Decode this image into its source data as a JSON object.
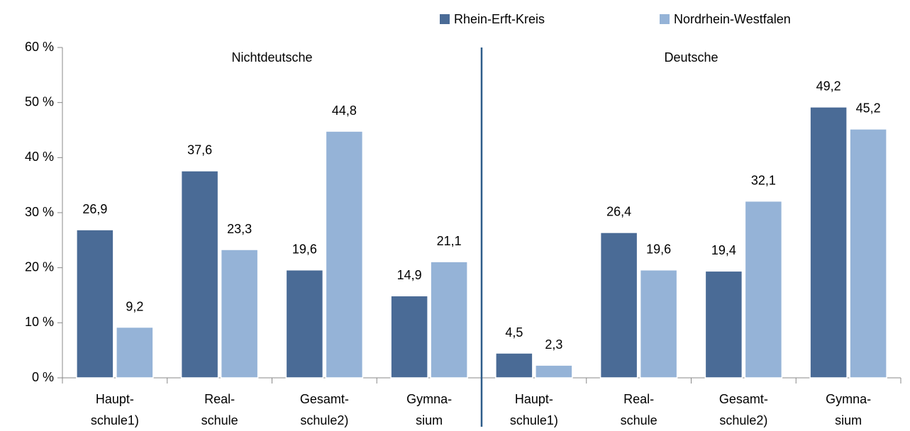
{
  "chart_data": {
    "type": "bar",
    "categories": [
      [
        "Haupt-",
        "schule1)"
      ],
      [
        "Real-",
        "schule"
      ],
      [
        "Gesamt-",
        "schule2)"
      ],
      [
        "Gymna-",
        "sium"
      ],
      [
        "Haupt-",
        "schule1)"
      ],
      [
        "Real-",
        "schule"
      ],
      [
        "Gesamt-",
        "schule2)"
      ],
      [
        "Gymna-",
        "sium"
      ]
    ],
    "group_labels": [
      "Nichtdeutsche",
      "Deutsche"
    ],
    "series": [
      {
        "name": "Rhein-Erft-Kreis",
        "color": "#4a6b96",
        "values": [
          26.9,
          37.6,
          19.6,
          14.9,
          4.5,
          26.4,
          19.4,
          49.2
        ],
        "value_labels": [
          "26,9",
          "37,6",
          "19,6",
          "14,9",
          "4,5",
          "26,4",
          "19,4",
          "49,2"
        ]
      },
      {
        "name": "Nordrhein-Westfalen",
        "color": "#95b3d7",
        "values": [
          9.2,
          23.3,
          44.8,
          21.1,
          2.3,
          19.6,
          32.1,
          45.2
        ],
        "value_labels": [
          "9,2",
          "23,3",
          "44,8",
          "21,1",
          "2,3",
          "19,6",
          "32,1",
          "45,2"
        ]
      }
    ],
    "ylim": [
      0,
      60
    ],
    "yticks": [
      {
        "value": 0,
        "label": "0 %"
      },
      {
        "value": 10,
        "label": "10 %"
      },
      {
        "value": 20,
        "label": "20 %"
      },
      {
        "value": 30,
        "label": "30 %"
      },
      {
        "value": 40,
        "label": "40 %"
      },
      {
        "value": 50,
        "label": "50 %"
      },
      {
        "value": 60,
        "label": "60 %"
      }
    ],
    "legend": "top"
  }
}
